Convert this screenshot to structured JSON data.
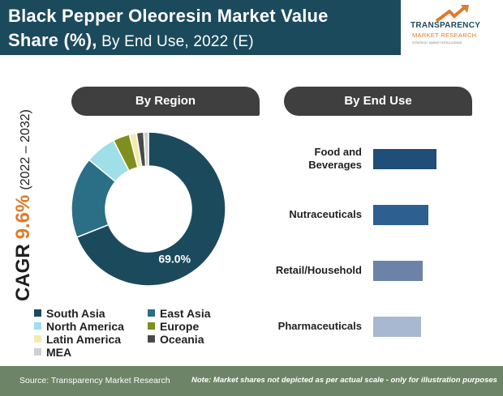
{
  "title": {
    "line1": "Black Pepper Oleoresin Market Value",
    "line2_bold": "Share (%),",
    "line2_rest": " By End Use, 2022 (E)"
  },
  "logo": {
    "name": "TRANSPARENCY",
    "sub": "MARKET RESEARCH",
    "tagline": "STRATEGIC MARKET INTELLIGENCE"
  },
  "cagr": {
    "label": "CAGR",
    "value": "9.6%",
    "period": "(2022 – 2032)"
  },
  "panels": {
    "region": "By Region",
    "end_use": "By End Use"
  },
  "colors": {
    "south_asia": "#1b4a5c",
    "east_asia": "#2a6f86",
    "north_america": "#9fe0e8",
    "europe": "#7f8f1e",
    "latin_america": "#f1ecab",
    "oceania": "#4a4a4a",
    "mea": "#cfcfcf",
    "bar_food": "#1f4e79",
    "bar_nutra": "#2e5f91",
    "bar_retail": "#6d82a8",
    "bar_pharma": "#a9b8d1",
    "accent_orange": "#e07b2a"
  },
  "chart_data": [
    {
      "type": "pie",
      "subtype": "donut",
      "title": "By Region",
      "labels": [
        "South Asia",
        "East Asia",
        "North America",
        "Europe",
        "Latin America",
        "Oceania",
        "MEA"
      ],
      "values": [
        69.0,
        17.0,
        6.5,
        3.5,
        1.5,
        1.5,
        1.0
      ],
      "data_labels": [
        "69.0%",
        "",
        "",
        "",
        "",
        "",
        ""
      ],
      "legend": "bottom"
    },
    {
      "type": "bar",
      "orientation": "horizontal",
      "title": "By End Use",
      "categories": [
        "Food and Beverages",
        "Nutraceuticals",
        "Retail/Household",
        "Pharmaceuticals"
      ],
      "category_lines": [
        [
          "Food and",
          "Beverages"
        ],
        [
          "Nutraceuticals"
        ],
        [
          "Retail/Household"
        ],
        [
          "Pharmaceuticals"
        ]
      ],
      "values": [
        32,
        28,
        25,
        24
      ],
      "axes_shown": false,
      "note": "Market shares not depicted as per actual scale"
    }
  ],
  "footer": {
    "source": "Source: Transparency Market Research",
    "note": "Note: Market shares not depicted as per actual scale - only for illustration purposes"
  }
}
